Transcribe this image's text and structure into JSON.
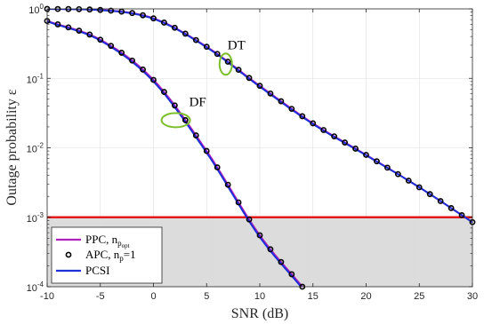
{
  "chart_data": {
    "type": "line",
    "xlabel": "SNR (dB)",
    "ylabel": "Outage probability ε",
    "xlim": [
      -10,
      30
    ],
    "ylim": [
      0.0001,
      1
    ],
    "yscale": "log",
    "grid": true,
    "legend_position": "bottom-left",
    "x_ticks": [
      "-10",
      "-5",
      "0",
      "5",
      "10",
      "15",
      "20",
      "25",
      "30"
    ],
    "y_ticks": [
      {
        "value": 1,
        "mant": "10",
        "exp": "0"
      },
      {
        "value": 0.1,
        "mant": "10",
        "exp": "-1"
      },
      {
        "value": 0.01,
        "mant": "10",
        "exp": "-2"
      },
      {
        "value": 0.001,
        "mant": "10",
        "exp": "-3"
      },
      {
        "value": 0.0001,
        "mant": "10",
        "exp": "-4"
      }
    ],
    "threshold": {
      "value": 0.001,
      "color": "#e21a1a",
      "shaded_below": true
    },
    "legend": [
      {
        "label": "PPC, n",
        "sub": "p",
        "sub2": "opt",
        "style": "line",
        "color": "#b21fbf"
      },
      {
        "label": "APC, n",
        "sub": "p",
        "suffix": "=1",
        "style": "marker",
        "color": "#000000"
      },
      {
        "label": "PCSI",
        "style": "line",
        "color": "#1f2fd6"
      }
    ],
    "annotations": [
      {
        "text": "DT",
        "x": 6.8,
        "y": 0.16
      },
      {
        "text": "DF",
        "x": 2.1,
        "y": 0.025
      }
    ],
    "series": [
      {
        "group": "DT",
        "x": [
          -10,
          -5,
          0,
          5,
          10,
          15,
          20,
          25,
          30
        ],
        "PCSI": [
          1.0,
          0.96,
          0.72,
          0.28,
          0.076,
          0.022,
          0.0078,
          0.0027,
          0.00085
        ],
        "PPC": [
          1.0,
          0.965,
          0.73,
          0.285,
          0.078,
          0.0225,
          0.0079,
          0.0027,
          0.00085
        ],
        "APC": [
          1.0,
          0.965,
          0.73,
          0.285,
          0.078,
          0.0225,
          0.0079,
          0.0027,
          0.00085
        ]
      },
      {
        "group": "DF",
        "x": [
          -10,
          -5,
          0,
          5,
          10,
          14
        ],
        "PCSI": [
          0.66,
          0.35,
          0.09,
          0.0085,
          0.00052,
          9.5e-05
        ],
        "PPC": [
          0.67,
          0.36,
          0.095,
          0.009,
          0.00055,
          0.0001
        ],
        "APC": [
          0.67,
          0.36,
          0.095,
          0.009,
          0.00055,
          0.0001
        ]
      }
    ]
  }
}
